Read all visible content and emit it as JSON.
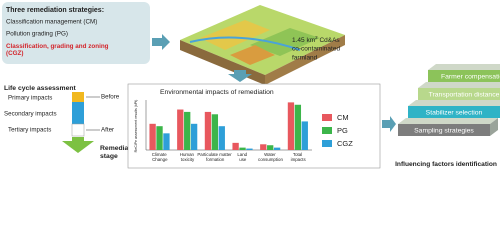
{
  "strategies": {
    "title": "Three remediation strategies:",
    "items": [
      "Classification management (CM)",
      "Pollution grading (PG)",
      "Classification, grading and zoning (CGZ)"
    ]
  },
  "site": {
    "area": "1.45 km",
    "area_unit": "2",
    "label_rest": " Cd&As",
    "label_line2": "co-contaminated",
    "label_line3": "farmland"
  },
  "lca": {
    "title": "Life cycle assessment",
    "levels": [
      "Primary impacts",
      "Secondary impacts",
      "Tertiary impacts"
    ],
    "before": "Before",
    "after": "After",
    "stage": "Remediation stage"
  },
  "factors": {
    "steps": [
      "Sampling strategies",
      "Stabilizer selection",
      "Transportation distance",
      "Farmer compensation"
    ],
    "caption": "Influencing factors identification"
  },
  "chart_data": {
    "type": "bar",
    "title": "Environmental impacts of remediation",
    "y_label": "ReCiPe assessment results (kPt)",
    "categories": [
      "Climate Change",
      "Human toxicity",
      "Particulate matter formation",
      "Land use",
      "Water consumption",
      "Total impacts"
    ],
    "series": [
      {
        "name": "CM",
        "color": "#e8585e",
        "values": [
          0.55,
          0.85,
          0.8,
          0.15,
          0.12,
          1.0
        ]
      },
      {
        "name": "PG",
        "color": "#3cb54a",
        "values": [
          0.5,
          0.8,
          0.75,
          0.05,
          0.1,
          0.95
        ]
      },
      {
        "name": "CGZ",
        "color": "#2e9fd8",
        "values": [
          0.35,
          0.55,
          0.5,
          0.03,
          0.05,
          0.6
        ]
      }
    ],
    "ylim": [
      0,
      1.05
    ]
  }
}
